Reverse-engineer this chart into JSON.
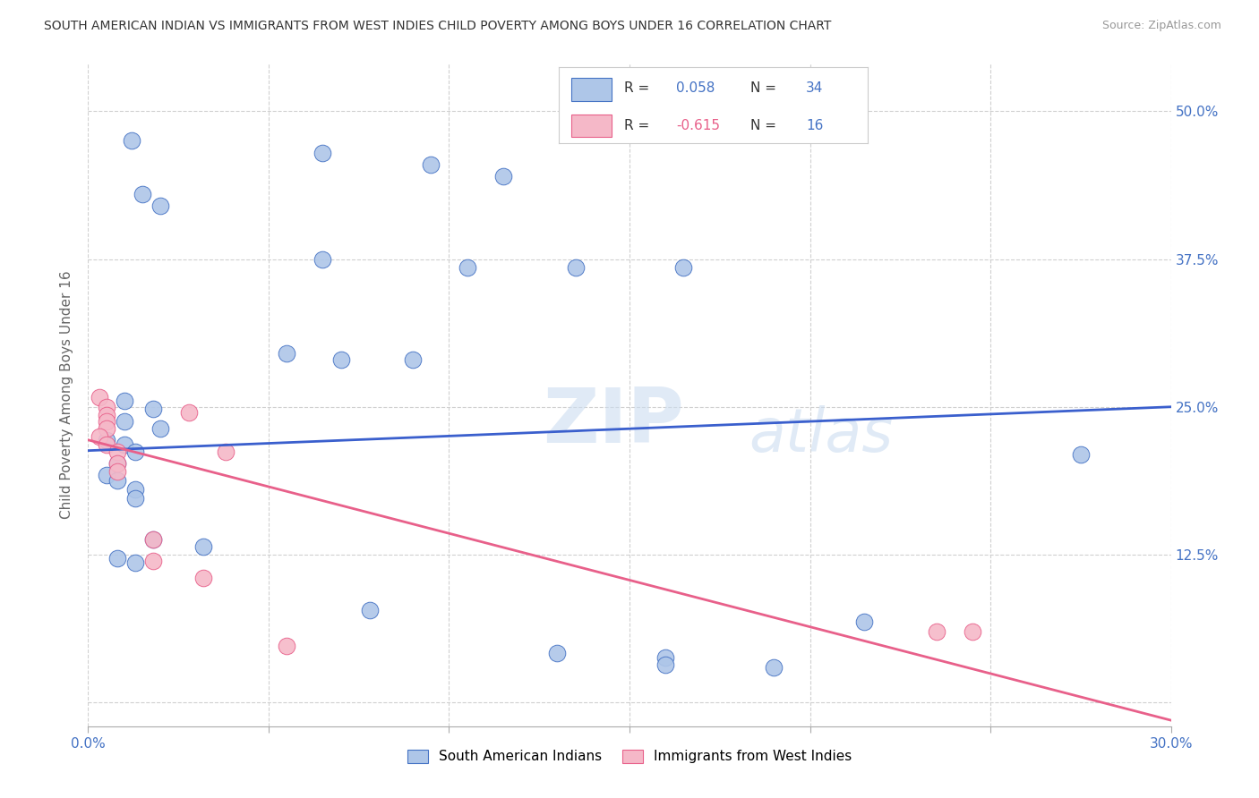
{
  "title": "SOUTH AMERICAN INDIAN VS IMMIGRANTS FROM WEST INDIES CHILD POVERTY AMONG BOYS UNDER 16 CORRELATION CHART",
  "source": "Source: ZipAtlas.com",
  "ylabel": "Child Poverty Among Boys Under 16",
  "xlim": [
    0.0,
    0.3
  ],
  "ylim": [
    -0.02,
    0.54
  ],
  "yticks": [
    0.0,
    0.125,
    0.25,
    0.375,
    0.5
  ],
  "ytick_labels": [
    "",
    "12.5%",
    "25.0%",
    "37.5%",
    "50.0%"
  ],
  "xticks": [
    0.0,
    0.05,
    0.1,
    0.15,
    0.2,
    0.25,
    0.3
  ],
  "xtick_labels": [
    "0.0%",
    "",
    "",
    "",
    "",
    "",
    "30.0%"
  ],
  "r1_color": "#4472c4",
  "r2_color": "#e8608a",
  "scatter_blue_color": "#aec6e8",
  "scatter_pink_color": "#f5b8c8",
  "blue_line_color": "#3a5fcd",
  "pink_line_color": "#e8608a",
  "watermark_zip": "ZIP",
  "watermark_atlas": "atlas",
  "background_color": "#ffffff",
  "grid_color": "#d0d0d0",
  "blue_points": [
    [
      0.012,
      0.475
    ],
    [
      0.015,
      0.43
    ],
    [
      0.02,
      0.42
    ],
    [
      0.065,
      0.465
    ],
    [
      0.095,
      0.455
    ],
    [
      0.115,
      0.445
    ],
    [
      0.065,
      0.375
    ],
    [
      0.105,
      0.368
    ],
    [
      0.135,
      0.368
    ],
    [
      0.165,
      0.368
    ],
    [
      0.055,
      0.295
    ],
    [
      0.07,
      0.29
    ],
    [
      0.09,
      0.29
    ],
    [
      0.01,
      0.255
    ],
    [
      0.018,
      0.248
    ],
    [
      0.01,
      0.238
    ],
    [
      0.02,
      0.232
    ],
    [
      0.005,
      0.222
    ],
    [
      0.01,
      0.218
    ],
    [
      0.013,
      0.212
    ],
    [
      0.008,
      0.202
    ],
    [
      0.005,
      0.192
    ],
    [
      0.008,
      0.188
    ],
    [
      0.013,
      0.18
    ],
    [
      0.013,
      0.173
    ],
    [
      0.018,
      0.138
    ],
    [
      0.032,
      0.132
    ],
    [
      0.008,
      0.122
    ],
    [
      0.013,
      0.118
    ],
    [
      0.078,
      0.078
    ],
    [
      0.13,
      0.042
    ],
    [
      0.16,
      0.038
    ],
    [
      0.16,
      0.032
    ],
    [
      0.19,
      0.03
    ],
    [
      0.215,
      0.068
    ],
    [
      0.275,
      0.21
    ]
  ],
  "pink_points": [
    [
      0.003,
      0.258
    ],
    [
      0.005,
      0.25
    ],
    [
      0.005,
      0.243
    ],
    [
      0.005,
      0.238
    ],
    [
      0.005,
      0.232
    ],
    [
      0.003,
      0.225
    ],
    [
      0.005,
      0.218
    ],
    [
      0.008,
      0.212
    ],
    [
      0.008,
      0.202
    ],
    [
      0.008,
      0.195
    ],
    [
      0.028,
      0.245
    ],
    [
      0.038,
      0.212
    ],
    [
      0.018,
      0.138
    ],
    [
      0.018,
      0.12
    ],
    [
      0.032,
      0.105
    ],
    [
      0.055,
      0.048
    ],
    [
      0.235,
      0.06
    ],
    [
      0.245,
      0.06
    ]
  ],
  "blue_line_x": [
    0.0,
    0.3
  ],
  "blue_line_y": [
    0.213,
    0.25
  ],
  "pink_line_x": [
    0.0,
    0.3
  ],
  "pink_line_y": [
    0.222,
    -0.015
  ]
}
